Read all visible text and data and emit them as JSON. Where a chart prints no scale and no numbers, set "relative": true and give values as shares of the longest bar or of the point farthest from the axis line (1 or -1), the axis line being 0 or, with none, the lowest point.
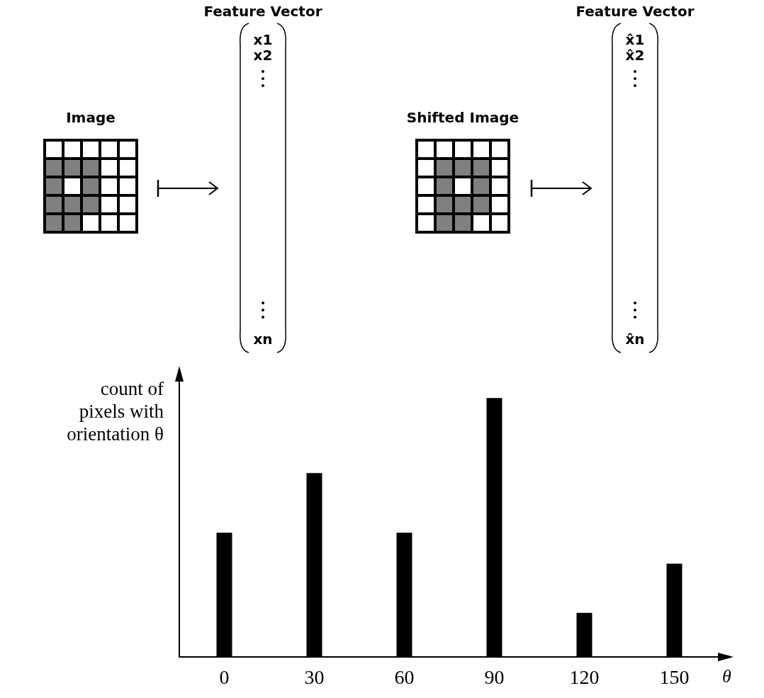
{
  "chart_data": {
    "type": "bar",
    "relative": true,
    "categories": [
      "0",
      "30",
      "60",
      "90",
      "120",
      "150"
    ],
    "values": [
      0.48,
      0.71,
      0.48,
      1,
      0.17,
      0.36
    ],
    "color": "#000000",
    "xlabel": "θ",
    "ylabel": "count of\npixels with\norientation θ",
    "annotations": [
      "Image",
      "Feature Vector",
      "x1",
      "x2",
      "xn",
      "Shifted Image",
      "Feature Vector",
      "x̂1",
      "x̂2",
      "x̂n"
    ]
  }
}
